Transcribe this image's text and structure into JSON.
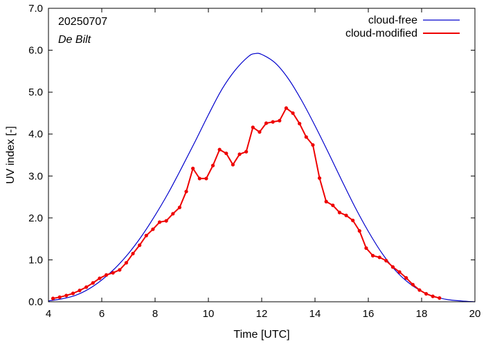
{
  "chart_data": {
    "type": "line",
    "xlabel": "Time  [UTC]",
    "ylabel": "UV index  [-]",
    "xlim": [
      4,
      20
    ],
    "ylim": [
      0,
      7
    ],
    "xticks": [
      "4",
      "6",
      "8",
      "10",
      "12",
      "14",
      "16",
      "18",
      "20"
    ],
    "yticks": [
      "0.0",
      "1.0",
      "2.0",
      "3.0",
      "4.0",
      "5.0",
      "6.0",
      "7.0"
    ],
    "annotations": {
      "date": "20250707",
      "location": "De Bilt"
    },
    "legend_position": "top-right",
    "grid": false,
    "colors": {
      "cloud_free": "#0000cc",
      "cloud_modified": "#ee0000"
    },
    "series": [
      {
        "name": "cloud-free",
        "style": "line",
        "x": [
          4.0,
          4.5,
          5.0,
          5.5,
          6.0,
          6.5,
          7.0,
          7.5,
          8.0,
          8.5,
          9.0,
          9.5,
          10.0,
          10.5,
          11.0,
          11.5,
          11.75,
          12.0,
          12.5,
          13.0,
          13.5,
          14.0,
          14.5,
          15.0,
          15.5,
          16.0,
          16.5,
          17.0,
          17.5,
          18.0,
          18.5,
          19.0,
          19.5,
          20.0
        ],
        "values": [
          0.02,
          0.07,
          0.15,
          0.3,
          0.52,
          0.8,
          1.15,
          1.57,
          2.06,
          2.6,
          3.2,
          3.82,
          4.46,
          5.06,
          5.52,
          5.85,
          5.92,
          5.9,
          5.7,
          5.32,
          4.8,
          4.2,
          3.56,
          2.9,
          2.26,
          1.68,
          1.17,
          0.76,
          0.46,
          0.25,
          0.12,
          0.05,
          0.02,
          0.0
        ]
      },
      {
        "name": "cloud-modified",
        "style": "line-points",
        "x": [
          4.17,
          4.42,
          4.67,
          4.92,
          5.17,
          5.42,
          5.67,
          5.92,
          6.17,
          6.42,
          6.67,
          6.92,
          7.17,
          7.42,
          7.67,
          7.92,
          8.17,
          8.42,
          8.67,
          8.92,
          9.17,
          9.42,
          9.67,
          9.92,
          10.17,
          10.42,
          10.67,
          10.92,
          11.17,
          11.42,
          11.67,
          11.92,
          12.17,
          12.42,
          12.67,
          12.92,
          13.17,
          13.42,
          13.67,
          13.92,
          14.17,
          14.42,
          14.67,
          14.92,
          15.17,
          15.42,
          15.67,
          15.92,
          16.17,
          16.42,
          16.67,
          16.92,
          17.17,
          17.42,
          17.67,
          17.92,
          18.17,
          18.42,
          18.67
        ],
        "values": [
          0.08,
          0.11,
          0.15,
          0.2,
          0.27,
          0.35,
          0.45,
          0.56,
          0.64,
          0.69,
          0.76,
          0.93,
          1.15,
          1.35,
          1.58,
          1.73,
          1.9,
          1.93,
          2.1,
          2.25,
          2.63,
          3.18,
          2.94,
          2.94,
          3.25,
          3.63,
          3.54,
          3.27,
          3.52,
          3.58,
          4.16,
          4.05,
          4.26,
          4.29,
          4.32,
          4.62,
          4.5,
          4.25,
          3.93,
          3.74,
          2.95,
          2.39,
          2.3,
          2.13,
          2.06,
          1.94,
          1.69,
          1.28,
          1.1,
          1.06,
          0.98,
          0.83,
          0.71,
          0.57,
          0.41,
          0.28,
          0.19,
          0.13,
          0.09
        ]
      }
    ]
  }
}
